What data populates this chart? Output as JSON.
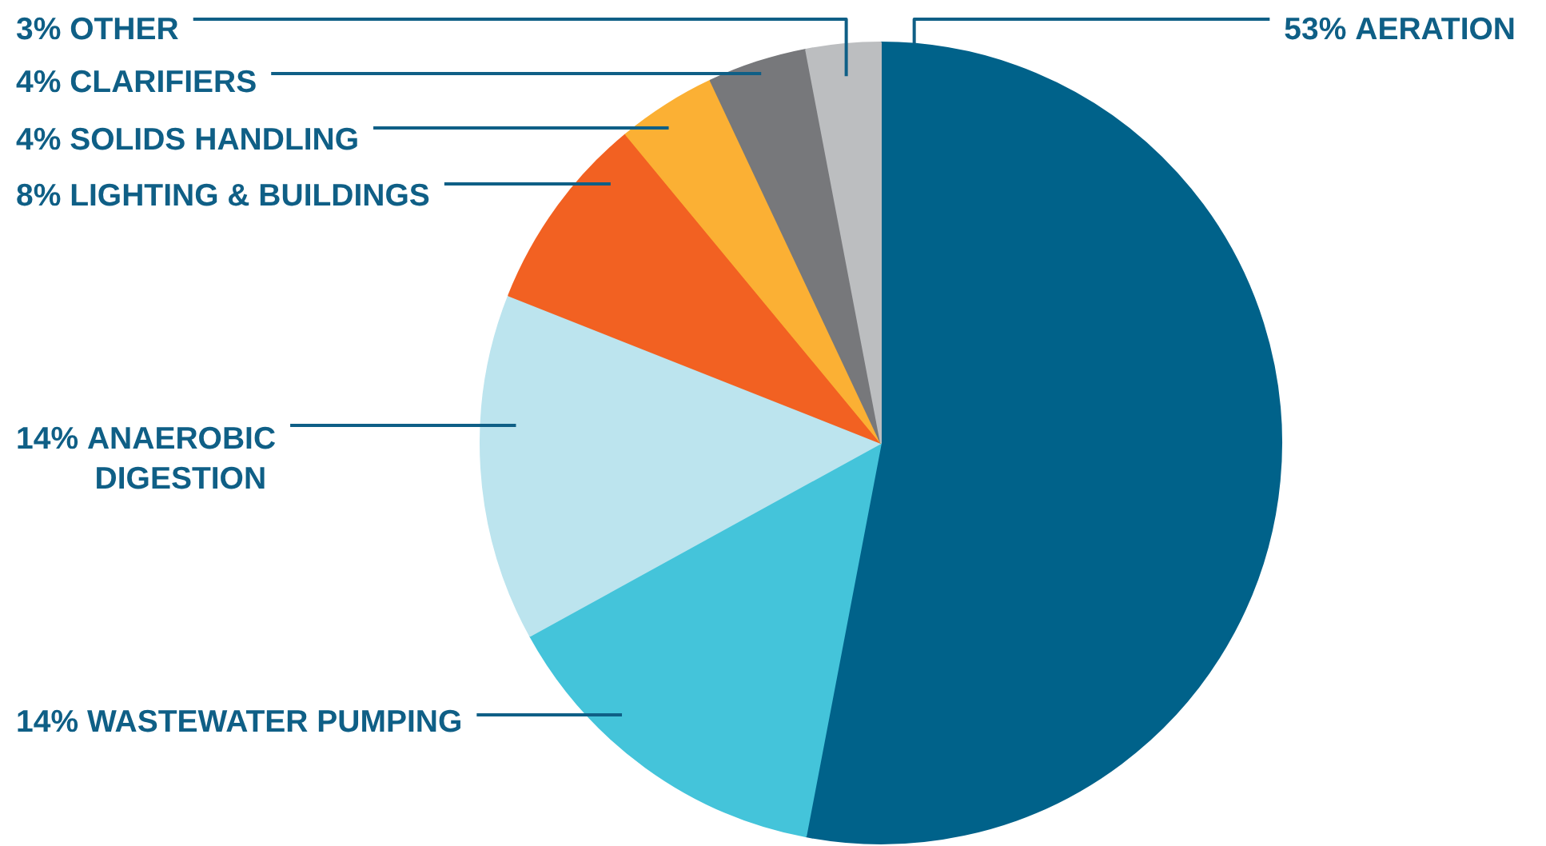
{
  "chart_data": {
    "type": "pie",
    "categories": [
      "AERATION",
      "WASTEWATER PUMPING",
      "ANAEROBIC DIGESTION",
      "LIGHTING & BUILDINGS",
      "SOLIDS HANDLING",
      "CLARIFIERS",
      "OTHER"
    ],
    "values": [
      53,
      14,
      14,
      8,
      4,
      4,
      3
    ],
    "colors": [
      "#00628a",
      "#44c4da",
      "#bce4ee",
      "#f26122",
      "#fbb034",
      "#77787b",
      "#bcbec0"
    ],
    "value_labels": [
      "53%",
      "14%",
      "14%",
      "8%",
      "4%",
      "4%",
      "3%"
    ]
  }
}
